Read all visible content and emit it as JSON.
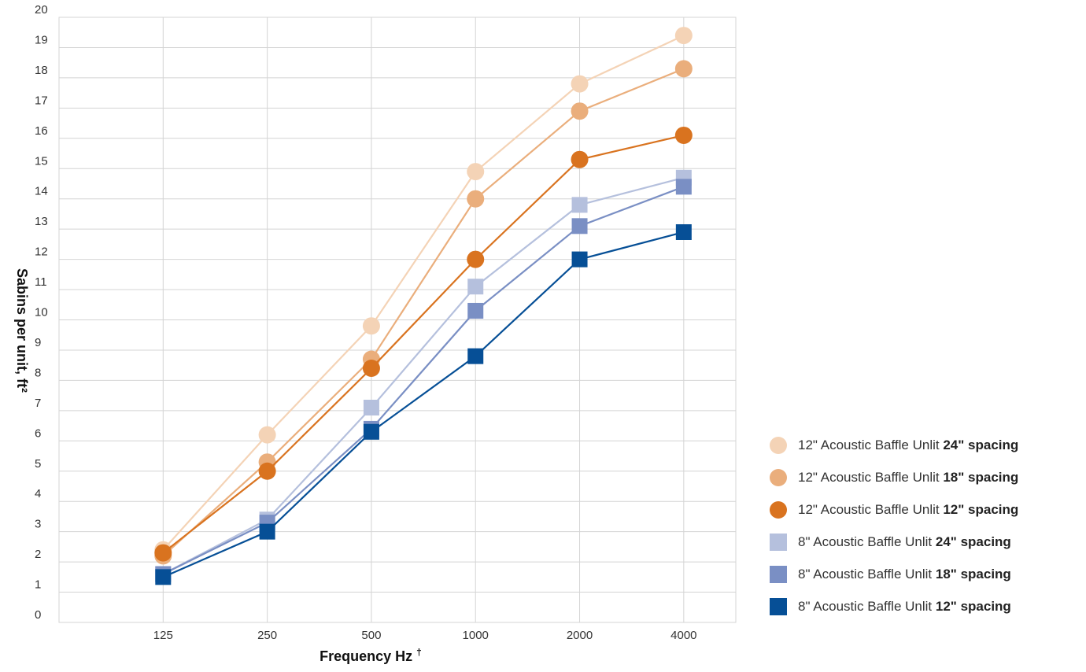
{
  "chart_data": {
    "type": "line",
    "xlabel": "Frequency Hz",
    "xlabel_mark": "†",
    "ylabel": "Sabins per unit, ft²",
    "categories": [
      "125",
      "250",
      "500",
      "1000",
      "2000",
      "4000"
    ],
    "yticks": [
      "0",
      "1",
      "2",
      "3",
      "4",
      "5",
      "6",
      "7",
      "8",
      "9",
      "10",
      "11",
      "12",
      "13",
      "14",
      "15",
      "16",
      "17",
      "18",
      "19",
      "20"
    ],
    "ylim": [
      0,
      20
    ],
    "grid": true,
    "legend_position": "right",
    "series": [
      {
        "name_prefix": "12\" Acoustic Baffle Unlit ",
        "name_bold": "24\" spacing",
        "marker": "circle",
        "color": "#f4d3b6",
        "values": [
          2.4,
          6.2,
          9.8,
          14.9,
          17.8,
          19.4
        ]
      },
      {
        "name_prefix": "12\" Acoustic Baffle Unlit ",
        "name_bold": "18\" spacing",
        "marker": "circle",
        "color": "#eaae7c",
        "values": [
          2.2,
          5.3,
          8.7,
          14.0,
          16.9,
          18.3
        ]
      },
      {
        "name_prefix": "12\" Acoustic Baffle Unlit ",
        "name_bold": "12\" spacing",
        "marker": "circle",
        "color": "#d9731f",
        "values": [
          2.3,
          5.0,
          8.4,
          12.0,
          15.3,
          16.1
        ]
      },
      {
        "name_prefix": "8\" Acoustic Baffle Unlit ",
        "name_bold": "24\" spacing",
        "marker": "square",
        "color": "#b5c0dd",
        "values": [
          1.6,
          3.4,
          7.1,
          11.1,
          13.8,
          14.7
        ]
      },
      {
        "name_prefix": "8\" Acoustic Baffle Unlit ",
        "name_bold": "18\" spacing",
        "marker": "square",
        "color": "#7a8fc4",
        "values": [
          1.6,
          3.3,
          6.4,
          10.3,
          13.1,
          14.4
        ]
      },
      {
        "name_prefix": "8\" Acoustic Baffle Unlit ",
        "name_bold": "12\" spacing",
        "marker": "square",
        "color": "#064f96",
        "values": [
          1.5,
          3.0,
          6.3,
          8.8,
          12.0,
          12.9
        ]
      }
    ]
  }
}
